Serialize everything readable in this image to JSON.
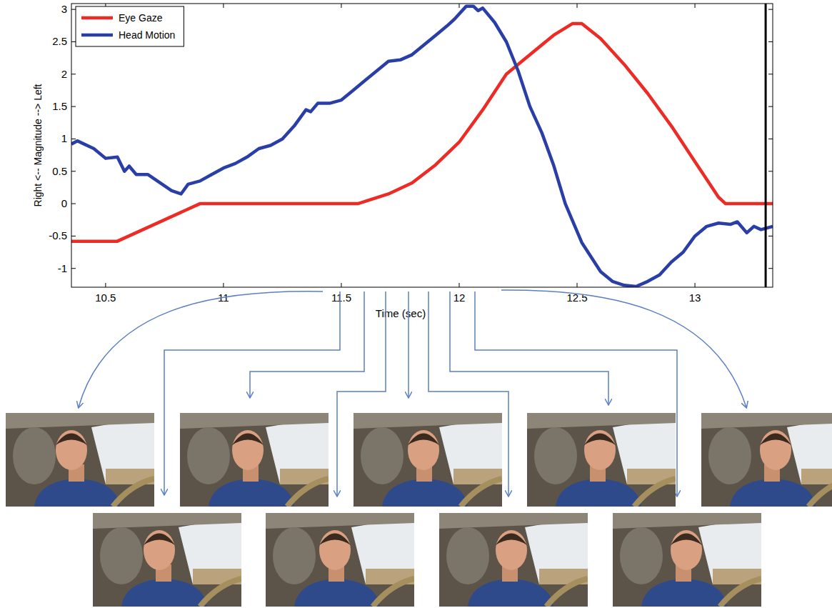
{
  "chart_data": {
    "type": "line",
    "x_label": "Time (sec)",
    "y_label": "Right <-- Magnitude --> Left",
    "xlim": [
      10.355,
      13.33
    ],
    "ylim": [
      -1.29,
      3.09
    ],
    "xticks": [
      10.5,
      11,
      11.5,
      12,
      12.5,
      13
    ],
    "yticks": [
      -1,
      -0.5,
      0,
      0.5,
      1,
      1.5,
      2,
      2.5,
      3
    ],
    "grid": false,
    "legend": "upper left",
    "vline": 13.3,
    "series": [
      {
        "name": "Eye Gaze",
        "color": "#ee2a24",
        "line_style": "solid",
        "x": [
          10.355,
          10.55,
          10.9,
          11.57,
          11.7,
          11.8,
          11.9,
          12.0,
          12.1,
          12.2,
          12.3,
          12.4,
          12.48,
          12.52,
          12.6,
          12.7,
          12.8,
          12.9,
          13.0,
          13.1,
          13.13,
          13.33
        ],
        "values": [
          -0.58,
          -0.58,
          0,
          0,
          0.15,
          0.32,
          0.6,
          0.95,
          1.45,
          2.0,
          2.3,
          2.6,
          2.78,
          2.78,
          2.55,
          2.15,
          1.7,
          1.2,
          0.65,
          0.1,
          0,
          0
        ]
      },
      {
        "name": "Head Motion",
        "color": "#2a3ea8",
        "line_style": "solid",
        "x": [
          10.355,
          10.38,
          10.45,
          10.5,
          10.55,
          10.58,
          10.6,
          10.63,
          10.68,
          10.72,
          10.78,
          10.82,
          10.85,
          10.9,
          10.95,
          11.0,
          11.05,
          11.1,
          11.15,
          11.2,
          11.25,
          11.3,
          11.35,
          11.37,
          11.4,
          11.45,
          11.5,
          11.55,
          11.6,
          11.65,
          11.7,
          11.75,
          11.8,
          11.85,
          11.9,
          11.95,
          11.98,
          12.03,
          12.06,
          12.08,
          12.1,
          12.15,
          12.2,
          12.25,
          12.3,
          12.35,
          12.4,
          12.45,
          12.52,
          12.6,
          12.65,
          12.7,
          12.75,
          12.8,
          12.85,
          12.9,
          12.95,
          13.0,
          13.05,
          13.1,
          13.15,
          13.18,
          13.22,
          13.25,
          13.28,
          13.33
        ],
        "values": [
          0.92,
          0.97,
          0.85,
          0.7,
          0.72,
          0.5,
          0.58,
          0.45,
          0.45,
          0.35,
          0.2,
          0.15,
          0.3,
          0.35,
          0.45,
          0.55,
          0.62,
          0.72,
          0.85,
          0.9,
          1.0,
          1.2,
          1.45,
          1.42,
          1.55,
          1.55,
          1.6,
          1.75,
          1.9,
          2.05,
          2.2,
          2.22,
          2.3,
          2.45,
          2.6,
          2.75,
          2.85,
          3.05,
          3.05,
          2.98,
          3.02,
          2.8,
          2.5,
          2.05,
          1.5,
          1.1,
          0.6,
          0.0,
          -0.6,
          -1.05,
          -1.2,
          -1.26,
          -1.28,
          -1.2,
          -1.1,
          -0.9,
          -0.75,
          -0.5,
          -0.35,
          -0.3,
          -0.32,
          -0.28,
          -0.45,
          -0.35,
          -0.4,
          -0.35
        ]
      }
    ]
  }
}
